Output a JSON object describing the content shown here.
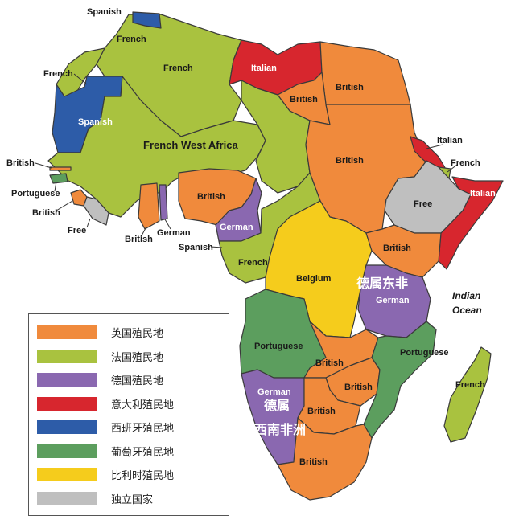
{
  "colors": {
    "british": "#f08a3c",
    "french": "#a9c23f",
    "german": "#8a68b0",
    "italian": "#d7262e",
    "spanish": "#2d5ca8",
    "portuguese": "#5c9e5e",
    "belgian": "#f5cc1c",
    "free": "#bfbfbf"
  },
  "labels": {
    "spanish_morocco": "Spanish",
    "french_morocco": "French",
    "french_algeria": "French",
    "italian_libya": "Italian",
    "french_nw": "French",
    "spanish_sahara": "Spanish",
    "british_egypt": "British",
    "british_egypt2": "British",
    "french_west_africa": "French West Africa",
    "british_sudan": "British",
    "italian_eritrea": "Italian",
    "french_somali": "French",
    "italian_somalia": "Italian",
    "british_gambia": "British",
    "portuguese_guinea": "Portuguese",
    "british_sierra_leone": "British",
    "free_liberia": "Free",
    "british_goldcoast": "British",
    "german_togo": "German",
    "british_nigeria": "British",
    "german_kamerun": "German",
    "spanish_guinea": "Spanish",
    "french_equatorial": "French",
    "free_ethiopia": "Free",
    "british_kenya": "British",
    "belgium_congo": "Belgium",
    "german_east": "German",
    "indian_ocean": "Indian Ocean",
    "portuguese_angola": "Portuguese",
    "british_rhodesia": "British",
    "portuguese_mozambique": "Portuguese",
    "british_nyasa": "British",
    "german_southwest": "German",
    "british_bechuana": "British",
    "british_south_africa": "British",
    "french_madagascar": "French"
  },
  "annotations": {
    "german_east_africa": "德属东非",
    "german_sw_line1": "德属",
    "german_sw_line2": "西南非洲"
  },
  "legend": [
    {
      "label": "英国殖民地",
      "color": "#f08a3c"
    },
    {
      "label": "法国殖民地",
      "color": "#a9c23f"
    },
    {
      "label": "德国殖民地",
      "color": "#8a68b0"
    },
    {
      "label": "意大利殖民地",
      "color": "#d7262e"
    },
    {
      "label": "西班牙殖民地",
      "color": "#2d5ca8"
    },
    {
      "label": "葡萄牙殖民地",
      "color": "#5c9e5e"
    },
    {
      "label": "比利时殖民地",
      "color": "#f5cc1c"
    },
    {
      "label": "独立国家",
      "color": "#bfbfbf"
    }
  ]
}
